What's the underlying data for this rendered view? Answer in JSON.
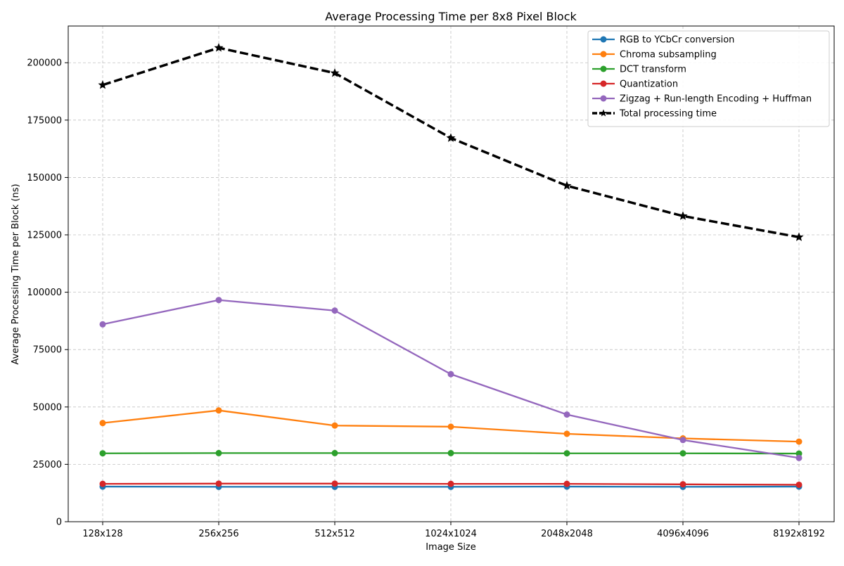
{
  "chart_data": {
    "type": "line",
    "title": "Average Processing Time per 8x8 Pixel Block",
    "xlabel": "Image Size",
    "ylabel": "Average Processing Time per Block (ns)",
    "categories": [
      "128x128",
      "256x256",
      "512x512",
      "1024x1024",
      "2048x2048",
      "4096x4096",
      "8192x8192"
    ],
    "ylim": [
      0,
      216000
    ],
    "yticks": [
      0,
      25000,
      50000,
      75000,
      100000,
      125000,
      150000,
      175000,
      200000
    ],
    "ytick_labels": [
      "0",
      "25000",
      "50000",
      "75000",
      "100000",
      "125000",
      "150000",
      "175000",
      "200000"
    ],
    "grid": true,
    "legend_position": "top-right",
    "series": [
      {
        "name": "RGB to YCbCr conversion",
        "color": "#1f77b4",
        "marker": "circle",
        "style": "solid",
        "values": [
          15300,
          15200,
          15200,
          15200,
          15300,
          15200,
          15300
        ]
      },
      {
        "name": "Chroma subsampling",
        "color": "#ff7f0e",
        "marker": "circle",
        "style": "solid",
        "values": [
          43000,
          48500,
          41900,
          41400,
          38300,
          36300,
          34900
        ]
      },
      {
        "name": "DCT transform",
        "color": "#2ca02c",
        "marker": "circle",
        "style": "solid",
        "values": [
          29800,
          29900,
          29900,
          29900,
          29800,
          29800,
          29700
        ]
      },
      {
        "name": "Quantization",
        "color": "#d62728",
        "marker": "circle",
        "style": "solid",
        "values": [
          16500,
          16600,
          16600,
          16500,
          16500,
          16300,
          16100
        ]
      },
      {
        "name": "Zigzag + Run-length Encoding + Huffman",
        "color": "#9467bd",
        "marker": "circle",
        "style": "solid",
        "values": [
          86000,
          96600,
          92000,
          64300,
          46700,
          35600,
          27800
        ]
      },
      {
        "name": "Total processing time",
        "color": "#000000",
        "marker": "star",
        "style": "dashed",
        "values": [
          190300,
          206500,
          195500,
          167200,
          146400,
          133200,
          124000
        ]
      }
    ]
  }
}
